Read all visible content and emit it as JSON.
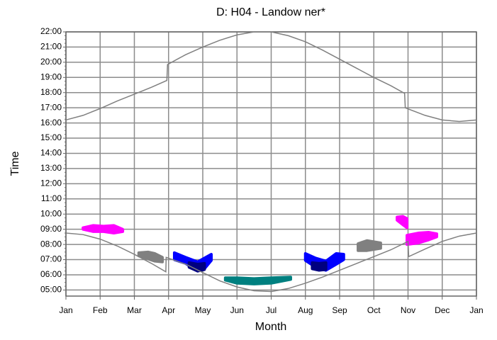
{
  "chart_data": {
    "type": "line",
    "title": "D: H04 - Landow ner*",
    "xlabel": "Month",
    "ylabel": "Time",
    "xlim": [
      0,
      12
    ],
    "xticks": [
      {
        "value": 0,
        "label": "Jan"
      },
      {
        "value": 1,
        "label": "Feb"
      },
      {
        "value": 2,
        "label": "Mar"
      },
      {
        "value": 3,
        "label": "Apr"
      },
      {
        "value": 4,
        "label": "May"
      },
      {
        "value": 5,
        "label": "Jun"
      },
      {
        "value": 6,
        "label": "Jul"
      },
      {
        "value": 7,
        "label": "Aug"
      },
      {
        "value": 8,
        "label": "Sep"
      },
      {
        "value": 9,
        "label": "Oct"
      },
      {
        "value": 10,
        "label": "Nov"
      },
      {
        "value": 11,
        "label": "Dec"
      },
      {
        "value": 12,
        "label": "Jan"
      }
    ],
    "ylim": [
      4.6,
      22
    ],
    "yticks": [
      {
        "value": 5,
        "label": "05:00"
      },
      {
        "value": 6,
        "label": "06:00"
      },
      {
        "value": 7,
        "label": "07:00"
      },
      {
        "value": 8,
        "label": "08:00"
      },
      {
        "value": 9,
        "label": "09:00"
      },
      {
        "value": 10,
        "label": "10:00"
      },
      {
        "value": 11,
        "label": "11:00"
      },
      {
        "value": 12,
        "label": "12:00"
      },
      {
        "value": 13,
        "label": "13:00"
      },
      {
        "value": 14,
        "label": "14:00"
      },
      {
        "value": 15,
        "label": "15:00"
      },
      {
        "value": 16,
        "label": "16:00"
      },
      {
        "value": 17,
        "label": "17:00"
      },
      {
        "value": 18,
        "label": "18:00"
      },
      {
        "value": 19,
        "label": "19:00"
      },
      {
        "value": 20,
        "label": "20:00"
      },
      {
        "value": 21,
        "label": "21:00"
      },
      {
        "value": 22,
        "label": "22:00"
      }
    ],
    "grid": true,
    "series": [
      {
        "color": "#808080",
        "x": [
          0,
          0.5,
          1,
          1.5,
          2,
          2.5,
          2.95,
          2.97,
          3.5,
          4,
          4.5,
          5,
          5.5,
          6,
          6.5,
          7,
          7.5,
          8,
          8.5,
          9,
          9.5,
          9.9,
          9.92,
          10.5,
          11,
          11.5,
          12
        ],
        "values": [
          16.2,
          16.5,
          16.95,
          17.45,
          17.9,
          18.35,
          18.8,
          19.85,
          20.5,
          21.0,
          21.45,
          21.8,
          22.0,
          22.0,
          21.75,
          21.35,
          20.8,
          20.2,
          19.6,
          19.0,
          18.45,
          17.95,
          17.0,
          16.5,
          16.2,
          16.1,
          16.2
        ]
      },
      {
        "color": "#808080",
        "x": [
          0,
          0.5,
          1,
          1.5,
          2,
          2.5,
          2.92,
          2.93,
          3.5,
          4,
          4.5,
          5,
          5.5,
          6,
          6.5,
          7,
          7.5,
          8,
          8.5,
          9,
          9.5,
          10,
          10.02,
          10.5,
          11,
          11.5,
          12
        ],
        "values": [
          8.75,
          8.65,
          8.35,
          7.9,
          7.35,
          6.75,
          6.2,
          7.15,
          6.7,
          6.15,
          5.6,
          5.2,
          4.95,
          4.9,
          5.1,
          5.45,
          5.85,
          6.3,
          6.75,
          7.2,
          7.65,
          8.2,
          7.2,
          7.7,
          8.2,
          8.55,
          8.75
        ]
      }
    ],
    "areas": [
      {
        "color": "#ff00ff",
        "x": [
          0.5,
          0.8,
          1.1,
          1.4,
          1.66
        ],
        "lower": [
          9.0,
          8.85,
          8.85,
          8.75,
          8.85
        ],
        "upper": [
          9.1,
          9.25,
          9.2,
          9.25,
          9.0
        ]
      },
      {
        "color": "#808080",
        "x": [
          2.13,
          2.4,
          2.6,
          2.82
        ],
        "lower": [
          7.25,
          7.05,
          6.9,
          6.85
        ],
        "upper": [
          7.45,
          7.5,
          7.4,
          7.15
        ]
      },
      {
        "color": "#0000ff",
        "x": [
          3.17,
          3.5,
          3.85,
          4.05,
          4.25
        ],
        "lower": [
          7.0,
          6.75,
          6.25,
          6.4,
          6.95
        ],
        "upper": [
          7.45,
          7.15,
          6.85,
          7.1,
          7.35
        ]
      },
      {
        "color": "#000080",
        "x": [
          3.6,
          3.85,
          4.05
        ],
        "lower": [
          6.5,
          6.25,
          6.35
        ],
        "upper": [
          6.8,
          6.7,
          6.75
        ]
      },
      {
        "color": "#008080",
        "x": [
          4.66,
          5,
          5.5,
          6,
          6.57
        ],
        "lower": [
          5.65,
          5.45,
          5.4,
          5.45,
          5.7
        ],
        "upper": [
          5.8,
          5.8,
          5.75,
          5.8,
          5.85
        ]
      },
      {
        "color": "#0000ff",
        "x": [
          7.0,
          7.3,
          7.6,
          7.9,
          8.12
        ],
        "lower": [
          6.95,
          6.5,
          6.3,
          6.7,
          7.0
        ],
        "upper": [
          7.4,
          7.1,
          6.9,
          7.4,
          7.35
        ]
      },
      {
        "color": "#000080",
        "x": [
          7.2,
          7.4,
          7.6
        ],
        "lower": [
          6.4,
          6.3,
          6.35
        ],
        "upper": [
          6.8,
          6.75,
          6.8
        ]
      },
      {
        "color": "#808080",
        "x": [
          8.54,
          8.8,
          9.2
        ],
        "lower": [
          7.6,
          7.6,
          7.75
        ],
        "upper": [
          8.05,
          8.25,
          8.1
        ]
      },
      {
        "color": "#ff00ff",
        "x": [
          9.68,
          9.85,
          9.97
        ],
        "lower": [
          9.6,
          9.3,
          9.1
        ],
        "upper": [
          9.8,
          9.85,
          9.7
        ]
      },
      {
        "color": "#ff00ff",
        "x": [
          9.97,
          10.3,
          10.6,
          10.84
        ],
        "lower": [
          8.0,
          8.1,
          8.3,
          8.5
        ],
        "upper": [
          8.6,
          8.75,
          8.8,
          8.7
        ]
      }
    ]
  }
}
